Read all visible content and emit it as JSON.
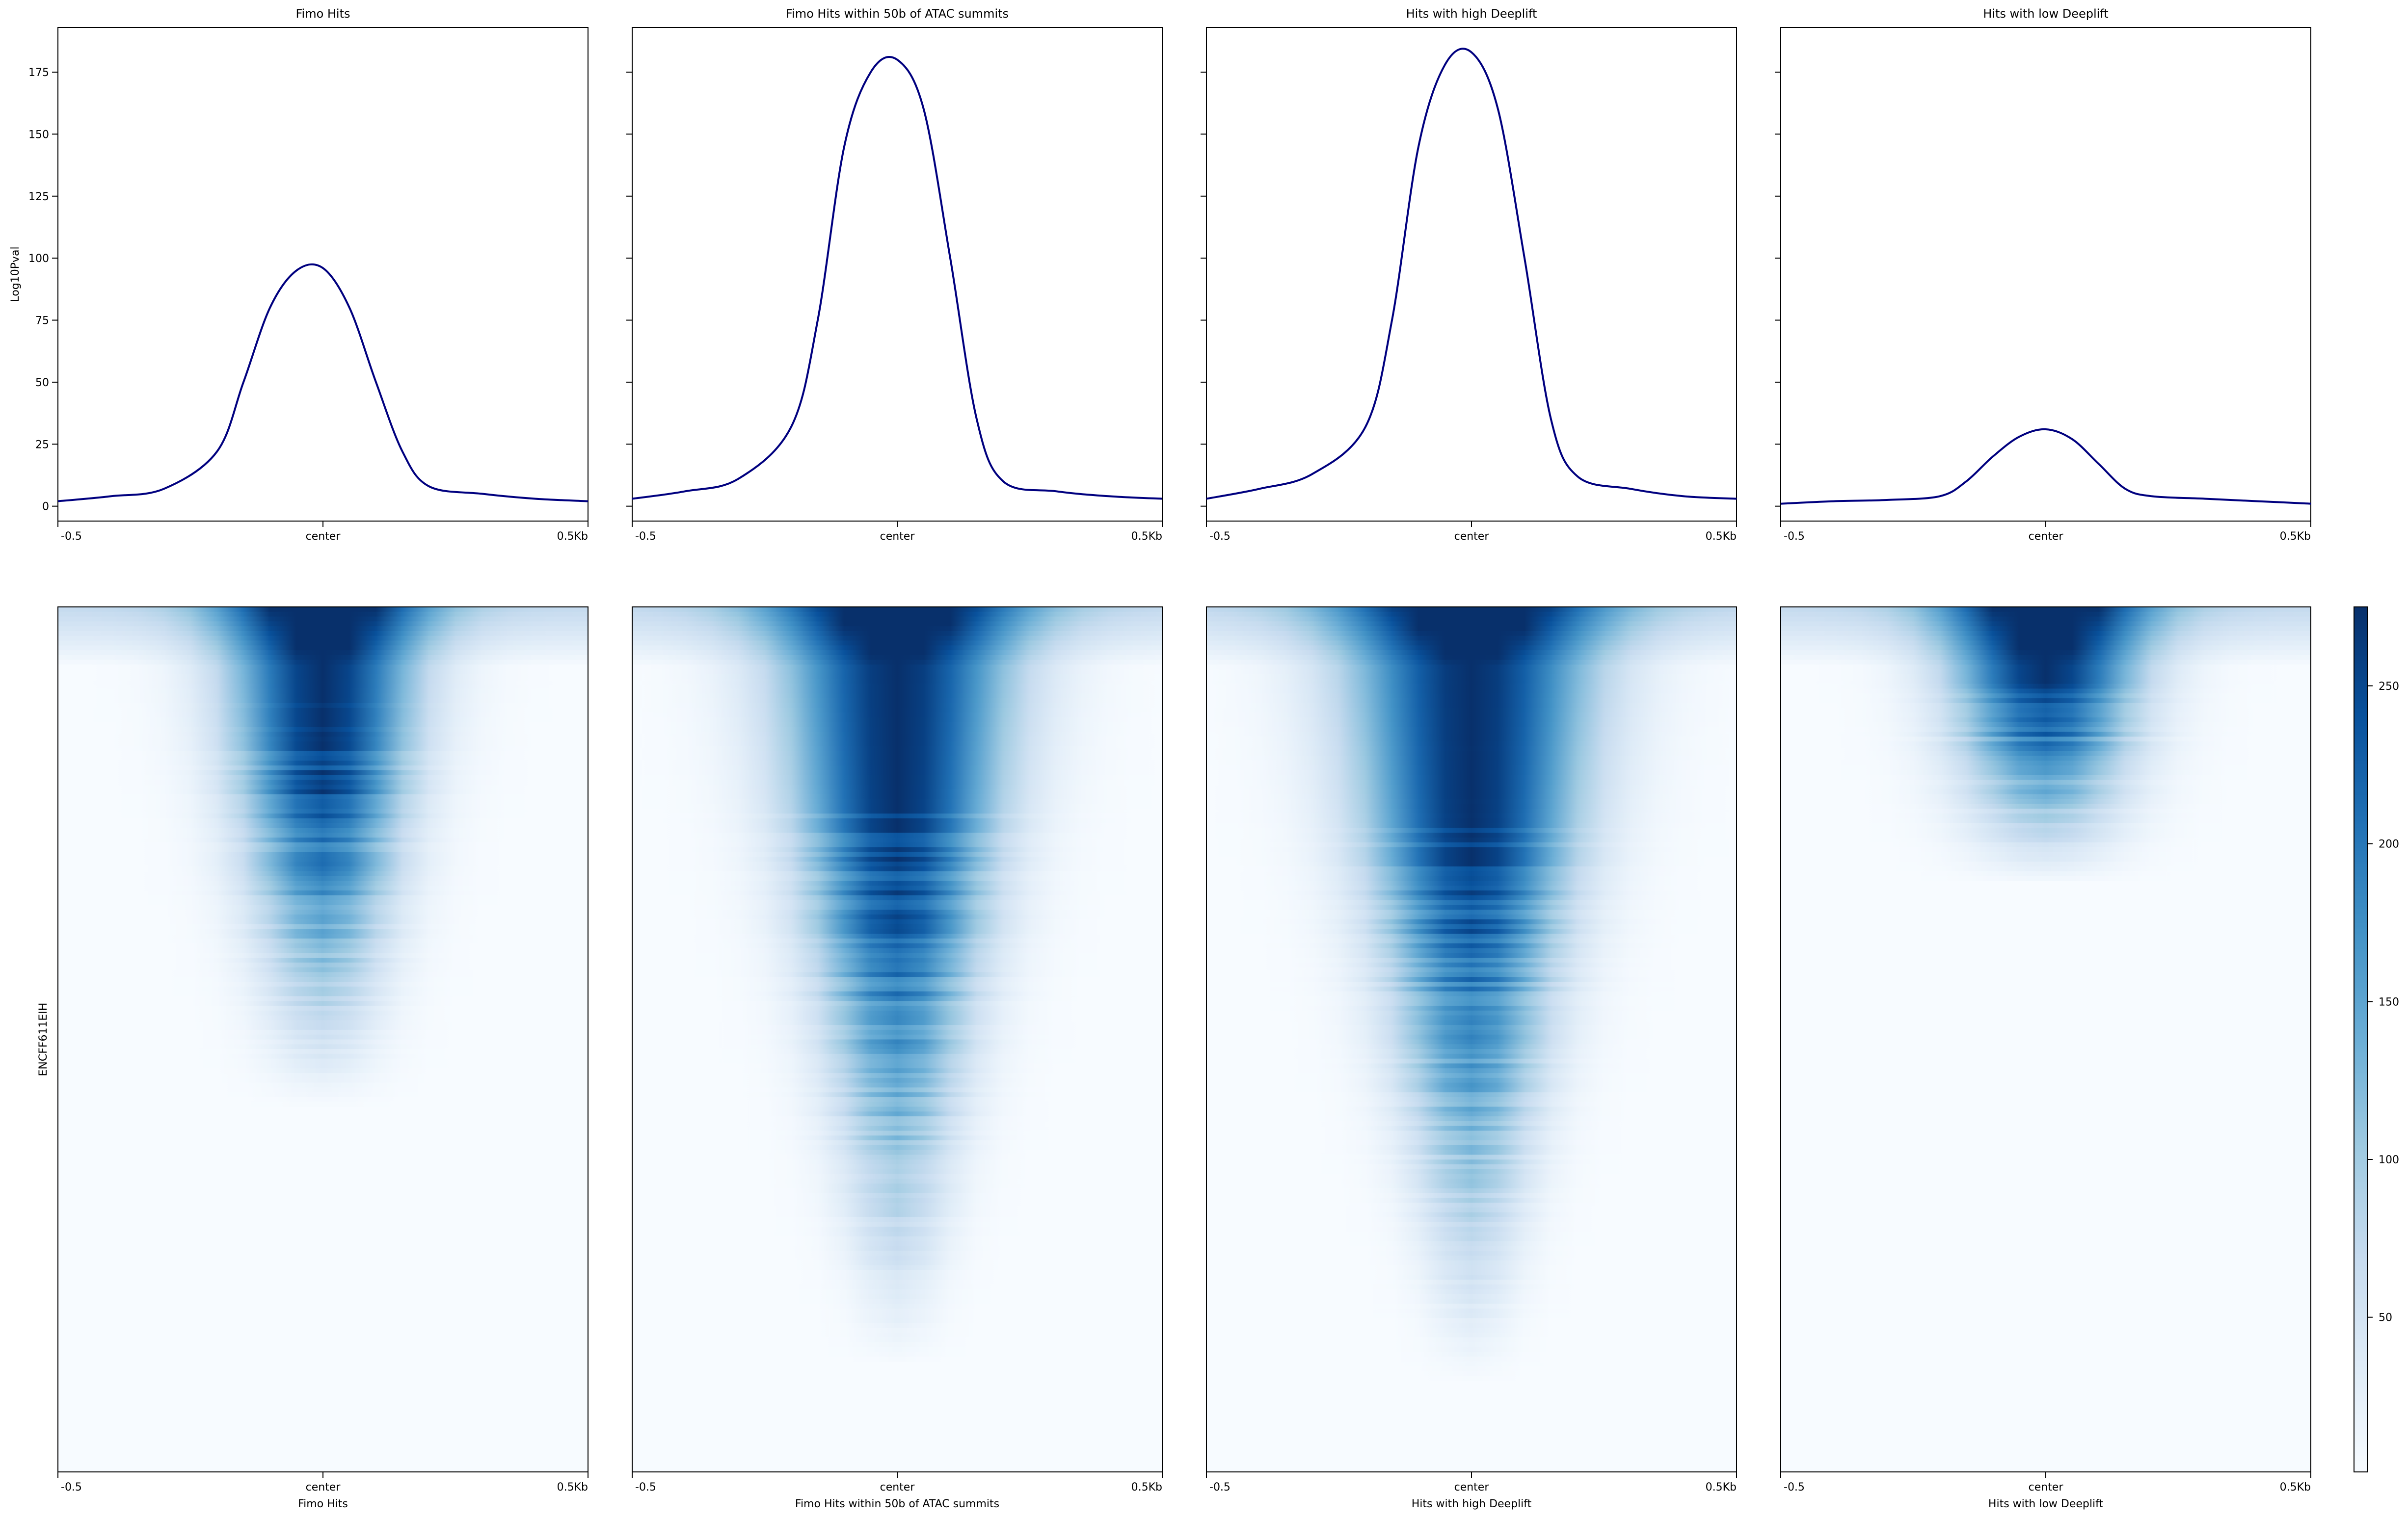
{
  "figure": {
    "profile_ylabel": "Log10Pval",
    "heatmap_ylabel": "ENCFF611EIH",
    "colorbar": {
      "ticks": [
        50,
        100,
        150,
        200,
        250
      ],
      "range": [
        1,
        275
      ],
      "cmap": [
        "#f7fbff",
        "#deebf7",
        "#c6dbef",
        "#9ecae1",
        "#6baed6",
        "#4292c6",
        "#2171b5",
        "#08519c",
        "#08306b"
      ]
    },
    "line_color": "#00007f",
    "panels": [
      {
        "title": "Fimo Hits",
        "xlabel": "Fimo Hits",
        "xticks": [
          "-0.5",
          "center",
          "0.5Kb"
        ]
      },
      {
        "title": "Fimo Hits within 50b of ATAC summits",
        "xlabel": "Fimo Hits within 50b of ATAC summits",
        "xticks": [
          "-0.5",
          "center",
          "0.5Kb"
        ]
      },
      {
        "title": "Hits with high Deeplift",
        "xlabel": "Hits with high Deeplift",
        "xticks": [
          "-0.5",
          "center",
          "0.5Kb"
        ]
      },
      {
        "title": "Hits with low Deeplift",
        "xlabel": "Hits with low Deeplift",
        "xticks": [
          "-0.5",
          "center",
          "0.5Kb"
        ]
      }
    ]
  },
  "chart_data": [
    {
      "type": "line",
      "title": "Fimo Hits",
      "xlabel": "",
      "ylabel": "Log10Pval",
      "x": [
        -0.5,
        -0.4,
        -0.3,
        -0.2,
        -0.15,
        -0.1,
        -0.05,
        0,
        0.05,
        0.1,
        0.15,
        0.2,
        0.3,
        0.4,
        0.5
      ],
      "values": [
        2,
        4,
        7,
        22,
        50,
        80,
        95,
        96,
        80,
        50,
        22,
        8,
        5,
        3,
        2
      ],
      "ylim": [
        -6,
        193
      ],
      "yticks": [
        0,
        25,
        50,
        75,
        100,
        125,
        150,
        175
      ]
    },
    {
      "type": "line",
      "title": "Fimo Hits within 50b of ATAC summits",
      "xlabel": "",
      "ylabel": "",
      "x": [
        -0.5,
        -0.4,
        -0.3,
        -0.2,
        -0.15,
        -0.1,
        -0.05,
        0,
        0.05,
        0.1,
        0.15,
        0.2,
        0.3,
        0.4,
        0.5
      ],
      "values": [
        3,
        6,
        11,
        32,
        75,
        145,
        175,
        180,
        160,
        100,
        35,
        10,
        6,
        4,
        3
      ],
      "ylim": [
        -6,
        193
      ],
      "yticks": [
        0,
        25,
        50,
        75,
        100,
        125,
        150,
        175
      ]
    },
    {
      "type": "line",
      "title": "Hits with high Deeplift",
      "xlabel": "",
      "ylabel": "",
      "x": [
        -0.5,
        -0.4,
        -0.3,
        -0.2,
        -0.15,
        -0.1,
        -0.05,
        0,
        0.05,
        0.1,
        0.15,
        0.2,
        0.3,
        0.4,
        0.5
      ],
      "values": [
        3,
        7,
        13,
        32,
        75,
        145,
        178,
        183,
        160,
        100,
        35,
        12,
        7,
        4,
        3
      ],
      "ylim": [
        -6,
        193
      ],
      "yticks": [
        0,
        25,
        50,
        75,
        100,
        125,
        150,
        175
      ]
    },
    {
      "type": "line",
      "title": "Hits with low Deeplift",
      "xlabel": "",
      "ylabel": "",
      "x": [
        -0.5,
        -0.4,
        -0.3,
        -0.2,
        -0.15,
        -0.1,
        -0.05,
        0,
        0.05,
        0.1,
        0.15,
        0.2,
        0.3,
        0.4,
        0.5
      ],
      "values": [
        1,
        2,
        2.5,
        4,
        10,
        20,
        28,
        31,
        27,
        17,
        7,
        4,
        3,
        2,
        1
      ],
      "ylim": [
        -6,
        193
      ],
      "yticks": [
        0,
        25,
        50,
        75,
        100,
        125,
        150,
        175
      ]
    },
    {
      "type": "heatmap",
      "title": "",
      "xlabel": "Fimo Hits",
      "ylabel": "ENCFF611EIH",
      "xticks": [
        "-0.5",
        "center",
        "0.5Kb"
      ],
      "vrange": [
        1,
        275
      ],
      "profile": {
        "peak": 275,
        "width_top": 0.13,
        "width_bottom": 0.02,
        "decay": 0.58
      }
    },
    {
      "type": "heatmap",
      "title": "",
      "xlabel": "Fimo Hits within 50b of ATAC summits",
      "ylabel": "",
      "xticks": [
        "-0.5",
        "center",
        "0.5Kb"
      ],
      "vrange": [
        1,
        275
      ],
      "profile": {
        "peak": 275,
        "width_top": 0.16,
        "width_bottom": 0.03,
        "decay": 0.88
      }
    },
    {
      "type": "heatmap",
      "title": "",
      "xlabel": "Hits with high Deeplift",
      "ylabel": "",
      "xticks": [
        "-0.5",
        "center",
        "0.5Kb"
      ],
      "vrange": [
        1,
        275
      ],
      "profile": {
        "peak": 275,
        "width_top": 0.17,
        "width_bottom": 0.03,
        "decay": 0.9
      }
    },
    {
      "type": "heatmap",
      "title": "",
      "xlabel": "Hits with low Deeplift",
      "ylabel": "",
      "xticks": [
        "-0.5",
        "center",
        "0.5Kb"
      ],
      "vrange": [
        1,
        275
      ],
      "profile": {
        "peak": 275,
        "width_top": 0.13,
        "width_bottom": 0.02,
        "decay": 0.32
      }
    }
  ]
}
